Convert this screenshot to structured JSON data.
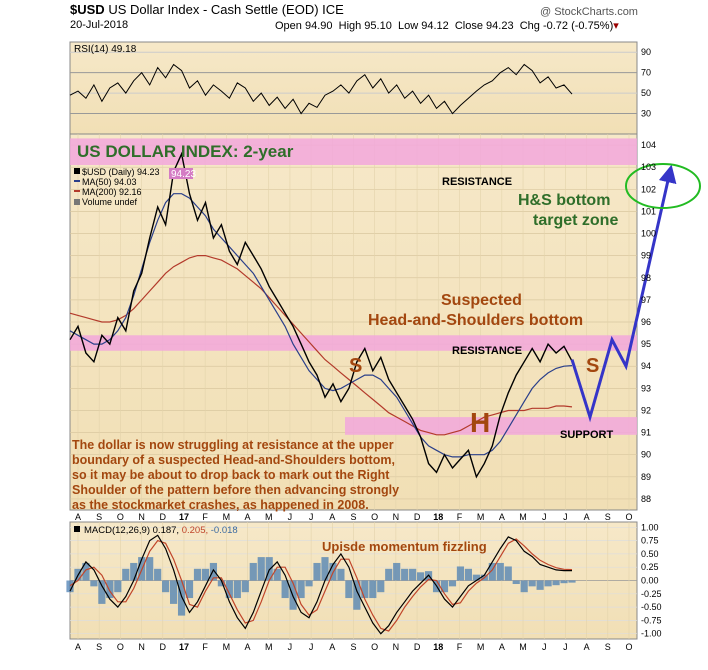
{
  "header": {
    "symbol": "$USD",
    "name": "US Dollar Index - Cash Settle (EOD)",
    "exchange": "ICE",
    "date": "20-Jul-2018",
    "watermark": "@ StockCharts.com",
    "open": "Open 94.90",
    "high": "High 95.10",
    "low": "Low 94.12",
    "close": "Close 94.23",
    "chg": "Chg -0.72 (-0.75%)"
  },
  "chart_data": [
    {
      "type": "line",
      "panel": "rsi",
      "label": "RSI(14) 49.18",
      "ylim": [
        10,
        100
      ],
      "ticks": [
        "90",
        "70",
        "50",
        "30"
      ],
      "tick_values": [
        90,
        70,
        50,
        30
      ],
      "bands": [
        30,
        70
      ],
      "series": [
        {
          "name": "RSI(14)",
          "values": [
            48,
            52,
            45,
            58,
            42,
            55,
            60,
            50,
            62,
            70,
            58,
            75,
            65,
            78,
            72,
            55,
            62,
            48,
            58,
            52,
            45,
            60,
            55,
            42,
            50,
            38,
            46,
            35,
            44,
            30,
            40,
            36,
            48,
            52,
            58,
            50,
            62,
            68,
            55,
            64,
            50,
            58,
            45,
            52,
            40,
            48,
            35,
            42,
            30,
            38,
            45,
            52,
            58,
            62,
            70,
            75,
            68,
            78,
            72,
            60,
            66,
            55,
            58,
            49
          ]
        }
      ]
    },
    {
      "type": "line",
      "panel": "price",
      "title": "US DOLLAR INDEX: 2-year",
      "ylim": [
        87.5,
        104.5
      ],
      "ticks": [
        "104",
        "103",
        "102",
        "101",
        "100",
        "99",
        "98",
        "97",
        "96",
        "95",
        "94",
        "93",
        "92",
        "91",
        "90",
        "89",
        "88"
      ],
      "tick_values": [
        104,
        103,
        102,
        101,
        100,
        99,
        98,
        97,
        96,
        95,
        94,
        93,
        92,
        91,
        90,
        89,
        88
      ],
      "x_labels": [
        "A",
        "S",
        "O",
        "N",
        "D",
        "17",
        "F",
        "M",
        "A",
        "M",
        "J",
        "J",
        "A",
        "S",
        "O",
        "N",
        "D",
        "18",
        "F",
        "M",
        "A",
        "M",
        "J",
        "J",
        "A",
        "S",
        "O"
      ],
      "legend": [
        "$USD (Daily) 94.23",
        "MA(50) 94.03",
        "MA(200) 92.16",
        "Volume undef"
      ],
      "series": [
        {
          "name": "$USD (Daily)",
          "values": [
            95.2,
            95.8,
            94.6,
            94.2,
            95.4,
            95.0,
            96.2,
            95.6,
            97.4,
            98.2,
            99.8,
            101.2,
            100.4,
            102.8,
            103.6,
            101.8,
            100.6,
            101.4,
            99.8,
            100.4,
            99.2,
            98.6,
            99.6,
            99.0,
            98.4,
            97.6,
            97.0,
            96.4,
            95.8,
            95.0,
            94.2,
            93.6,
            92.6,
            93.2,
            92.4,
            93.0,
            94.2,
            94.8,
            93.8,
            94.4,
            93.4,
            92.8,
            92.2,
            91.6,
            90.8,
            89.6,
            89.2,
            90.0,
            89.4,
            89.8,
            90.2,
            89.0,
            89.6,
            90.4,
            91.8,
            92.8,
            93.6,
            94.2,
            94.8,
            94.2,
            95.0,
            94.6,
            94.9,
            94.23
          ]
        },
        {
          "name": "MA(50)",
          "values": [
            95.6,
            95.4,
            95.2,
            95.0,
            95.0,
            95.2,
            95.6,
            96.2,
            97.2,
            98.4,
            99.6,
            100.6,
            101.4,
            101.8,
            101.8,
            101.6,
            101.2,
            100.8,
            100.2,
            99.8,
            99.4,
            99.0,
            98.6,
            98.2,
            97.6,
            97.0,
            96.4,
            95.8,
            95.0,
            94.4,
            93.8,
            93.4,
            93.0,
            92.9,
            93.0,
            93.2,
            93.4,
            93.6,
            93.6,
            93.4,
            93.0,
            92.6,
            92.0,
            91.4,
            90.8,
            90.4,
            90.2,
            90.0,
            89.9,
            89.9,
            90.0,
            90.0,
            90.0,
            90.2,
            90.6,
            91.2,
            91.8,
            92.4,
            93.0,
            93.4,
            93.7,
            93.9,
            94.0,
            94.03
          ]
        },
        {
          "name": "MA(200)",
          "values": [
            96.4,
            96.3,
            96.2,
            96.1,
            96.0,
            96.0,
            96.1,
            96.3,
            96.6,
            97.0,
            97.4,
            97.8,
            98.2,
            98.5,
            98.7,
            98.9,
            99.0,
            99.0,
            98.9,
            98.8,
            98.6,
            98.4,
            98.1,
            97.8,
            97.5,
            97.1,
            96.7,
            96.3,
            95.9,
            95.5,
            95.1,
            94.7,
            94.3,
            94.0,
            93.7,
            93.4,
            93.1,
            92.8,
            92.5,
            92.2,
            91.9,
            91.7,
            91.5,
            91.3,
            91.1,
            91.0,
            90.9,
            90.9,
            91.0,
            91.1,
            91.3,
            91.5,
            91.7,
            91.8,
            91.9,
            92.0,
            92.0,
            92.0,
            92.1,
            92.1,
            92.1,
            92.2,
            92.2,
            92.16
          ]
        }
      ],
      "projection": [
        94.3,
        91.7,
        95.2,
        94.0,
        102.8
      ],
      "zones": [
        {
          "label": "RESISTANCE",
          "from": 103.1,
          "to": 104.3
        },
        {
          "label": "RESISTANCE",
          "from": 94.7,
          "to": 95.4
        },
        {
          "label": "SUPPORT",
          "from": 90.9,
          "to": 91.7
        }
      ],
      "annotations": {
        "target": [
          "H&S bottom",
          "target zone"
        ],
        "pattern": [
          "Suspected",
          "Head-and-Shoulders bottom"
        ],
        "s_left": "S",
        "head": "H",
        "s_right": "S",
        "commentary": [
          "The dollar is now struggling at resistance at the upper",
          "boundary of a suspected Head-and-Shoulders bottom,",
          "so it may be about to drop back to mark out the Right",
          "Shoulder of the pattern before then advancing strongly",
          "as the stockmarket crashes, as happened in 2008."
        ]
      },
      "price_tag": "94.23"
    },
    {
      "type": "line",
      "panel": "macd",
      "label_name": "MACD(12,26,9)",
      "label_macd": "0.187,",
      "label_signal": "0.205,",
      "label_hist": "-0.018",
      "annotation": "Upisde momentum fizzling",
      "ylim": [
        -1.1,
        1.1
      ],
      "ticks": [
        "1.00",
        "0.75",
        "0.50",
        "0.25",
        "0.00",
        "-0.25",
        "-0.50",
        "-0.75",
        "-1.00"
      ],
      "tick_values": [
        1.0,
        0.75,
        0.5,
        0.25,
        0.0,
        -0.25,
        -0.5,
        -0.75,
        -1.0
      ],
      "x_labels": [
        "A",
        "S",
        "O",
        "N",
        "D",
        "17",
        "F",
        "M",
        "A",
        "M",
        "J",
        "J",
        "A",
        "S",
        "O",
        "N",
        "D",
        "18",
        "F",
        "M",
        "A",
        "M",
        "J",
        "J",
        "A",
        "S",
        "O"
      ],
      "series": [
        {
          "name": "MACD",
          "values": [
            -0.2,
            0.1,
            0.35,
            0.2,
            -0.1,
            -0.35,
            -0.5,
            -0.3,
            0.0,
            0.4,
            0.75,
            0.85,
            0.6,
            0.2,
            -0.3,
            -0.6,
            -0.4,
            -0.1,
            0.2,
            0.0,
            -0.4,
            -0.7,
            -0.9,
            -0.6,
            -0.2,
            0.2,
            0.35,
            0.1,
            -0.3,
            -0.6,
            -0.7,
            -0.4,
            0.0,
            0.3,
            0.5,
            0.25,
            -0.2,
            -0.5,
            -0.8,
            -1.0,
            -0.85,
            -0.6,
            -0.4,
            -0.2,
            -0.05,
            0.1,
            -0.1,
            -0.35,
            -0.5,
            -0.3,
            -0.1,
            0.0,
            0.1,
            0.35,
            0.6,
            0.82,
            0.75,
            0.55,
            0.45,
            0.3,
            0.25,
            0.2,
            0.187,
            0.187
          ]
        },
        {
          "name": "Signal",
          "values": [
            -0.1,
            0.0,
            0.2,
            0.25,
            0.1,
            -0.2,
            -0.4,
            -0.4,
            -0.15,
            0.2,
            0.55,
            0.75,
            0.7,
            0.4,
            0.0,
            -0.45,
            -0.5,
            -0.2,
            0.05,
            0.05,
            -0.25,
            -0.55,
            -0.8,
            -0.75,
            -0.4,
            0.0,
            0.25,
            0.25,
            -0.05,
            -0.45,
            -0.65,
            -0.55,
            -0.2,
            0.15,
            0.4,
            0.4,
            0.05,
            -0.35,
            -0.65,
            -0.9,
            -0.95,
            -0.75,
            -0.5,
            -0.3,
            -0.12,
            0.02,
            0.0,
            -0.25,
            -0.45,
            -0.42,
            -0.2,
            -0.05,
            0.05,
            0.2,
            0.45,
            0.7,
            0.78,
            0.65,
            0.5,
            0.38,
            0.3,
            0.24,
            0.21,
            0.205
          ]
        }
      ]
    }
  ]
}
